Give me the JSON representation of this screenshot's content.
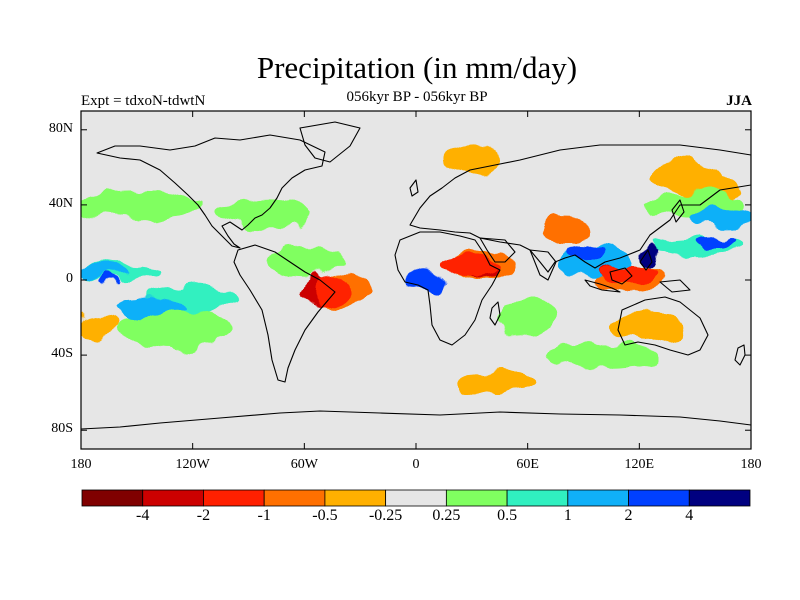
{
  "header": {
    "title": "Precipitation (in mm/day)",
    "left_subtitle": "Expt = tdxoN-tdwtN",
    "center_subtitle": "056kyr BP - 056kyr BP",
    "right_subtitle": "JJA"
  },
  "map_extent": {
    "lon_min": -180,
    "lon_max": 180,
    "lat_min": -90,
    "lat_max": 90
  },
  "lat_ticks": [
    {
      "lat": 80,
      "label": "80N"
    },
    {
      "lat": 40,
      "label": "40N"
    },
    {
      "lat": 0,
      "label": "0"
    },
    {
      "lat": -40,
      "label": "40S"
    },
    {
      "lat": -80,
      "label": "80S"
    }
  ],
  "lon_ticks": [
    {
      "lon": -180,
      "label": "180"
    },
    {
      "lon": -120,
      "label": "120W"
    },
    {
      "lon": -60,
      "label": "60W"
    },
    {
      "lon": 0,
      "label": "0"
    },
    {
      "lon": 60,
      "label": "60E"
    },
    {
      "lon": 120,
      "label": "120E"
    },
    {
      "lon": 180,
      "label": "180"
    }
  ],
  "colorbar": {
    "colors": [
      "#800000",
      "#cc0000",
      "#ff2000",
      "#ff7000",
      "#ffb000",
      "#e6e6e6",
      "#80ff60",
      "#30f0c0",
      "#10b0f8",
      "#0040ff",
      "#000080"
    ],
    "labels": [
      "-4",
      "-2",
      "-1",
      "-0.5",
      "-0.25",
      "0.25",
      "0.5",
      "1",
      "2",
      "4"
    ]
  },
  "anomaly_regions": [
    {
      "level": 3,
      "lon": -40,
      "lat": -6,
      "rlon": 14,
      "rlat": 10
    },
    {
      "level": 3,
      "lon": 35,
      "lat": 8,
      "rlon": 18,
      "rlat": 8
    },
    {
      "level": 3,
      "lon": 115,
      "lat": 0,
      "rlon": 20,
      "rlat": 8
    },
    {
      "level": 3,
      "lon": 80,
      "lat": 27,
      "rlon": 14,
      "rlat": 6
    },
    {
      "level": 4,
      "lon": -170,
      "lat": -25,
      "rlon": 10,
      "rlat": 6
    },
    {
      "level": 4,
      "lon": 30,
      "lat": 65,
      "rlon": 15,
      "rlat": 8
    },
    {
      "level": 4,
      "lon": 145,
      "lat": 55,
      "rlon": 18,
      "rlat": 8
    },
    {
      "level": 4,
      "lon": 45,
      "lat": -55,
      "rlon": 22,
      "rlat": 6
    },
    {
      "level": 4,
      "lon": 125,
      "lat": -25,
      "rlon": 20,
      "rlat": 7
    },
    {
      "level": 4,
      "lon": 160,
      "lat": 48,
      "rlon": 15,
      "rlat": 7
    },
    {
      "level": 6,
      "lon": -150,
      "lat": 40,
      "rlon": 35,
      "rlat": 8
    },
    {
      "level": 6,
      "lon": -80,
      "lat": 35,
      "rlon": 25,
      "rlat": 8
    },
    {
      "level": 6,
      "lon": -130,
      "lat": -25,
      "rlon": 30,
      "rlat": 12
    },
    {
      "level": 6,
      "lon": 100,
      "lat": -40,
      "rlon": 30,
      "rlat": 6
    },
    {
      "level": 6,
      "lon": -60,
      "lat": 10,
      "rlon": 20,
      "rlat": 8
    },
    {
      "level": 6,
      "lon": 60,
      "lat": -20,
      "rlon": 15,
      "rlat": 10
    },
    {
      "level": 6,
      "lon": 150,
      "lat": 40,
      "rlon": 25,
      "rlat": 7
    },
    {
      "level": 7,
      "lon": -160,
      "lat": 5,
      "rlon": 25,
      "rlat": 4
    },
    {
      "level": 7,
      "lon": -120,
      "lat": -10,
      "rlon": 25,
      "rlat": 7
    },
    {
      "level": 7,
      "lon": 150,
      "lat": 18,
      "rlon": 25,
      "rlat": 5
    },
    {
      "level": 8,
      "lon": -170,
      "lat": 5,
      "rlon": 16,
      "rlat": 3
    },
    {
      "level": 8,
      "lon": 95,
      "lat": 10,
      "rlon": 20,
      "rlat": 8
    },
    {
      "level": 8,
      "lon": 165,
      "lat": 33,
      "rlon": 15,
      "rlat": 5
    },
    {
      "level": 8,
      "lon": -145,
      "lat": -15,
      "rlon": 20,
      "rlat": 5
    },
    {
      "level": 9,
      "lon": 5,
      "lat": 0,
      "rlon": 10,
      "rlat": 5
    },
    {
      "level": 9,
      "lon": 90,
      "lat": 15,
      "rlon": 10,
      "rlat": 5
    },
    {
      "level": 9,
      "lon": 160,
      "lat": 20,
      "rlon": 10,
      "rlat": 3
    },
    {
      "level": 9,
      "lon": -165,
      "lat": 0,
      "rlon": 6,
      "rlat": 2
    },
    {
      "level": 10,
      "lon": 125,
      "lat": 12,
      "rlon": 4,
      "rlat": 5
    },
    {
      "level": 1,
      "lon": -55,
      "lat": -5,
      "rlon": 8,
      "rlat": 7
    },
    {
      "level": 1,
      "lon": 35,
      "lat": 5,
      "rlon": 10,
      "rlat": 4
    },
    {
      "level": 1,
      "lon": 108,
      "lat": 3,
      "rlon": 8,
      "rlat": 4
    },
    {
      "level": 2,
      "lon": -45,
      "lat": -5,
      "rlon": 12,
      "rlat": 8
    },
    {
      "level": 2,
      "lon": 30,
      "lat": 8,
      "rlon": 15,
      "rlat": 6
    },
    {
      "level": 2,
      "lon": 115,
      "lat": 2,
      "rlon": 15,
      "rlat": 6
    }
  ]
}
